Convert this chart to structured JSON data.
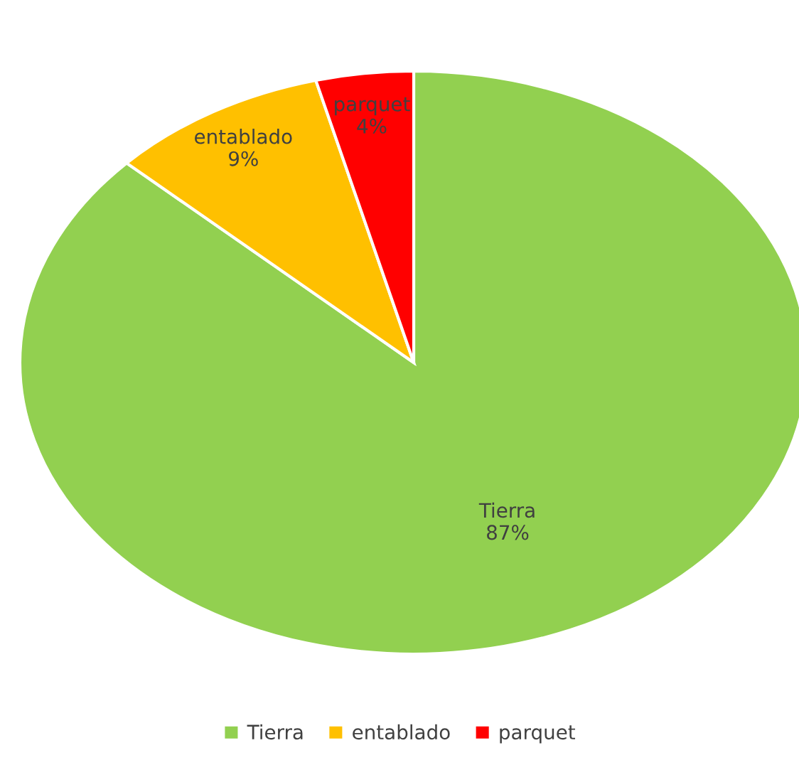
{
  "chart_data": {
    "type": "pie",
    "categories": [
      "Tierra",
      "entablado",
      "parquet"
    ],
    "values": [
      87,
      9,
      4
    ],
    "colors": [
      "#92d050",
      "#ffc000",
      "#ff0000"
    ],
    "value_labels": [
      "87%",
      "9%",
      "4%"
    ],
    "legend": "bottom"
  }
}
